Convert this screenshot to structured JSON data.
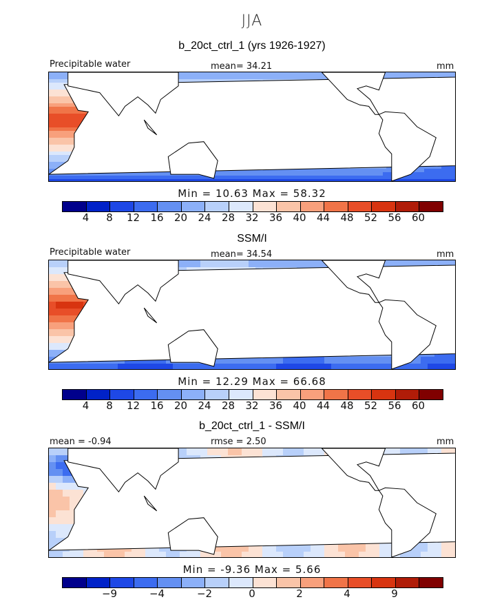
{
  "season": "JJA",
  "colors": {
    "scale": [
      "#00008c",
      "#0022c8",
      "#1e48e6",
      "#3c6cf0",
      "#6490f2",
      "#8cb0f8",
      "#b8d0fa",
      "#dce8fc",
      "#fce2d4",
      "#fac4a8",
      "#f8a07c",
      "#f07448",
      "#e84e28",
      "#d83410",
      "#b01c08",
      "#800000"
    ],
    "land": "#ffffff"
  },
  "panels": [
    {
      "title": "b_20ct_ctrl_1 (yrs 1926-1927)",
      "left_label": "Precipitable water",
      "center_label": "mean=  34.21",
      "units": "mm",
      "stat_line": "Min =   10.63  Max =   58.32",
      "colorbar_ticks": [
        "4",
        "8",
        "12",
        "16",
        "20",
        "24",
        "28",
        "32",
        "36",
        "40",
        "44",
        "48",
        "52",
        "56",
        "60"
      ],
      "field": "model"
    },
    {
      "title": "SSM/I",
      "left_label": "Precipitable water",
      "center_label": "mean=  34.54",
      "units": "mm",
      "stat_line": "Min =   12.29  Max =   66.68",
      "colorbar_ticks": [
        "4",
        "8",
        "12",
        "16",
        "20",
        "24",
        "28",
        "32",
        "36",
        "40",
        "44",
        "48",
        "52",
        "56",
        "60"
      ],
      "field": "obs"
    },
    {
      "title": "b_20ct_ctrl_1 - SSM/I",
      "left_label": "mean =  -0.94",
      "center_label": "rmse =   2.50",
      "units": "mm",
      "stat_line": "Min =  -9.36  Max =    5.66",
      "colorbar_ticks": [
        "−9",
        "−4",
        "−2",
        "0",
        "2",
        "4",
        "9"
      ],
      "colorbar_tick_positions": [
        2,
        4,
        6,
        8,
        10,
        12,
        14
      ],
      "field": "diff"
    }
  ]
}
